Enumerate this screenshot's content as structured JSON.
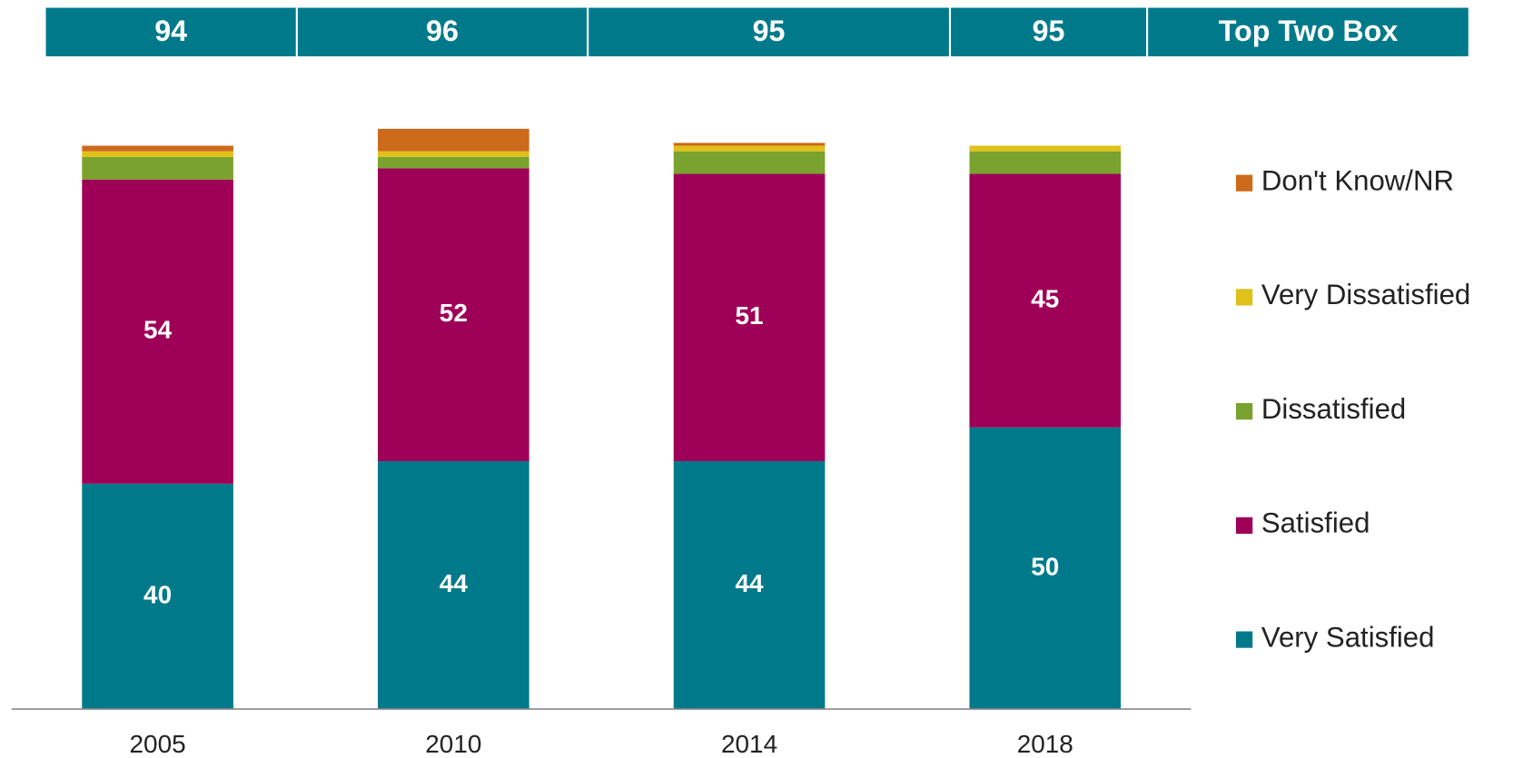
{
  "chart_data": {
    "type": "stacked_bar",
    "categories": [
      "2005",
      "2010",
      "2014",
      "2018"
    ],
    "top_two_box": {
      "label": "Top Two Box",
      "values": [
        94,
        96,
        95,
        95
      ],
      "color": "#007a8a"
    },
    "series": [
      {
        "name": "Very Satisfied",
        "color": "#007a8a",
        "values": [
          40,
          44,
          44,
          50
        ],
        "show_labels": true
      },
      {
        "name": "Satisfied",
        "color": "#9e0058",
        "values": [
          54,
          52,
          51,
          45
        ],
        "show_labels": true
      },
      {
        "name": "Dissatisfied",
        "color": "#7aa22e",
        "values": [
          4,
          2,
          4,
          4
        ],
        "show_labels": false
      },
      {
        "name": "Very Dissatisfied",
        "color": "#e0c01a",
        "values": [
          1,
          1,
          1,
          1
        ],
        "show_labels": false
      },
      {
        "name": "Don't Know/NR",
        "color": "#cc6a1c",
        "values": [
          1,
          4,
          0.5,
          0
        ],
        "show_labels": false
      }
    ],
    "ylim": [
      0,
      100
    ],
    "legend": "right"
  }
}
